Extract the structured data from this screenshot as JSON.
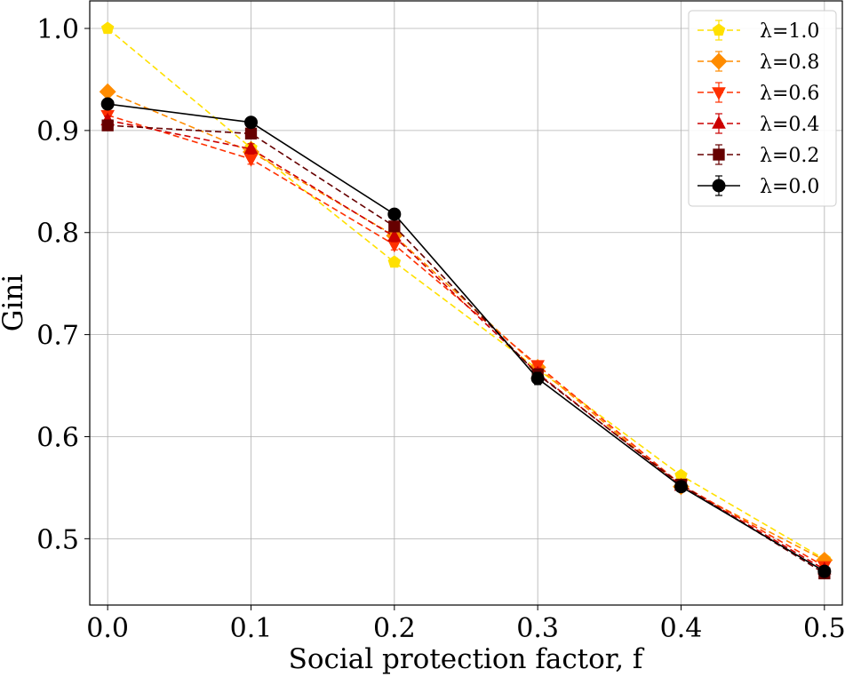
{
  "chart_data": {
    "type": "line",
    "title": "",
    "xlabel": "Social protection factor, f",
    "ylabel": "Gini",
    "x": [
      0.0,
      0.1,
      0.2,
      0.3,
      0.4,
      0.5
    ],
    "xlim": [
      -0.0125,
      0.5125
    ],
    "ylim": [
      0.435,
      1.027
    ],
    "xticks": [
      0.0,
      0.1,
      0.2,
      0.3,
      0.4,
      0.5
    ],
    "xtick_labels": [
      "0.0",
      "0.1",
      "0.2",
      "0.3",
      "0.4",
      "0.5"
    ],
    "yticks": [
      0.5,
      0.6,
      0.7,
      0.8,
      0.9,
      1.0
    ],
    "ytick_labels": [
      "0.5",
      "0.6",
      "0.7",
      "0.8",
      "0.9",
      "1.0"
    ],
    "grid": true,
    "legend_position": "top-right",
    "series": [
      {
        "name": "λ=1.0",
        "color": "#FFE000",
        "marker": "pentagon",
        "dashed": true,
        "values": [
          1.0,
          0.883,
          0.771,
          0.666,
          0.562,
          0.48
        ],
        "errors": [
          0.002,
          0.004,
          0.004,
          0.004,
          0.004,
          0.003
        ]
      },
      {
        "name": "λ=0.8",
        "color": "#FF8C00",
        "marker": "diamond",
        "dashed": true,
        "values": [
          0.938,
          0.879,
          0.797,
          0.668,
          0.551,
          0.479
        ],
        "errors": [
          0.003,
          0.004,
          0.004,
          0.004,
          0.004,
          0.003
        ]
      },
      {
        "name": "λ=0.6",
        "color": "#FF3000",
        "marker": "triangle-down",
        "dashed": true,
        "values": [
          0.915,
          0.872,
          0.788,
          0.67,
          0.553,
          0.473
        ],
        "errors": [
          0.004,
          0.005,
          0.005,
          0.004,
          0.004,
          0.003
        ]
      },
      {
        "name": "λ=0.4",
        "color": "#CC0000",
        "marker": "triangle-up",
        "dashed": true,
        "values": [
          0.91,
          0.882,
          0.796,
          0.662,
          0.552,
          0.47
        ],
        "errors": [
          0.004,
          0.005,
          0.005,
          0.005,
          0.004,
          0.003
        ]
      },
      {
        "name": "λ=0.2",
        "color": "#660000",
        "marker": "square",
        "dashed": true,
        "values": [
          0.905,
          0.897,
          0.806,
          0.661,
          0.553,
          0.466
        ],
        "errors": [
          0.004,
          0.004,
          0.004,
          0.005,
          0.004,
          0.003
        ]
      },
      {
        "name": "λ=0.0",
        "color": "#000000",
        "marker": "circle",
        "dashed": false,
        "values": [
          0.926,
          0.908,
          0.818,
          0.657,
          0.551,
          0.468
        ],
        "errors": [
          0.003,
          0.003,
          0.003,
          0.006,
          0.004,
          0.003
        ]
      }
    ]
  }
}
